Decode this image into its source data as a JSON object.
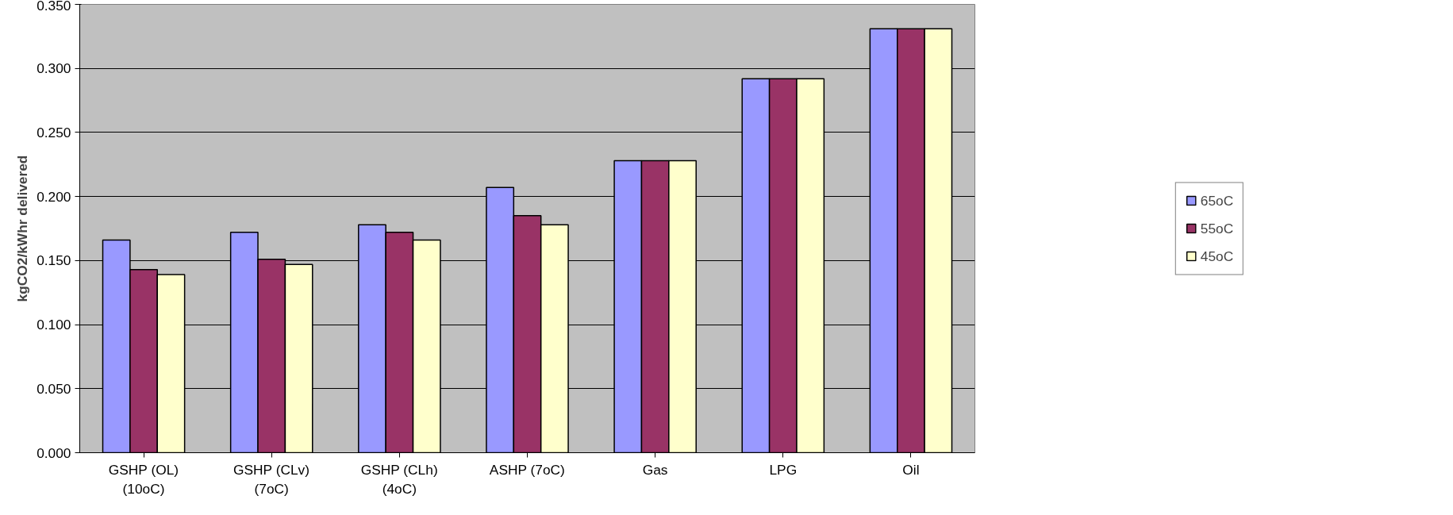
{
  "chart_data": {
    "type": "bar",
    "ylabel": "kgCO2/kWhr delivered",
    "categories": [
      "GSHP (OL)\n(10oC)",
      "GSHP (CLv)\n(7oC)",
      "GSHP (CLh)\n(4oC)",
      "ASHP (7oC)",
      "Gas",
      "LPG",
      "Oil"
    ],
    "series": [
      {
        "name": "65oC",
        "color": "#9999ff",
        "values": [
          0.166,
          0.172,
          0.178,
          0.207,
          0.228,
          0.292,
          0.331
        ]
      },
      {
        "name": "55oC",
        "color": "#993366",
        "values": [
          0.143,
          0.151,
          0.172,
          0.185,
          0.228,
          0.292,
          0.331
        ]
      },
      {
        "name": "45oC",
        "color": "#ffffcc",
        "values": [
          0.139,
          0.147,
          0.166,
          0.178,
          0.228,
          0.292,
          0.331
        ]
      }
    ],
    "ylim": [
      0,
      0.35
    ],
    "yticks": [
      {
        "value": 0,
        "label": "0.000"
      },
      {
        "value": 0.05,
        "label": "0.050"
      },
      {
        "value": 0.1,
        "label": "0.100"
      },
      {
        "value": 0.15,
        "label": "0.150"
      },
      {
        "value": 0.2,
        "label": "0.200"
      },
      {
        "value": 0.25,
        "label": "0.250"
      },
      {
        "value": 0.3,
        "label": "0.300"
      },
      {
        "value": 0.35,
        "label": "0.350"
      }
    ],
    "grid": "y",
    "legend": "right"
  }
}
